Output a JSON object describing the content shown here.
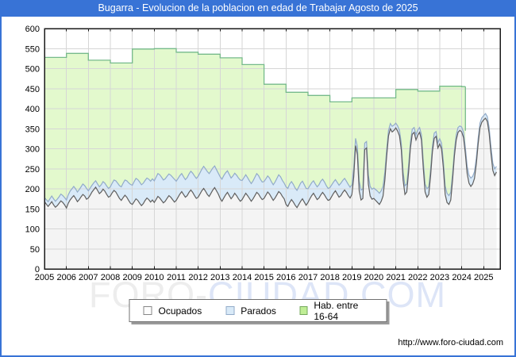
{
  "header": {
    "title": "Bugarra - Evolucion de la poblacion en edad de Trabajar Agosto de 2025"
  },
  "watermark": {
    "part1": "FORO-",
    "part2": "CIUDAD.COM"
  },
  "footer": {
    "url": "http://www.foro-ciudad.com"
  },
  "legend": {
    "items": [
      {
        "label": "Ocupados"
      },
      {
        "label": "Parados"
      },
      {
        "label": "Hab. entre 16-64"
      }
    ]
  },
  "chart_data": {
    "type": "area",
    "title": "Bugarra - Evolucion de la poblacion en edad de Trabajar Agosto de 2025",
    "x_unit": "month",
    "x_range": [
      2005.0,
      2025.75
    ],
    "y_range": [
      0,
      600
    ],
    "x_ticks": [
      2005,
      2006,
      2007,
      2008,
      2009,
      2010,
      2011,
      2012,
      2013,
      2014,
      2015,
      2016,
      2017,
      2018,
      2019,
      2020,
      2021,
      2022,
      2023,
      2024,
      2025
    ],
    "y_ticks": [
      0,
      50,
      100,
      150,
      200,
      250,
      300,
      350,
      400,
      450,
      500,
      550,
      600
    ],
    "grid": true,
    "legend_position": "bottom",
    "style": {
      "plot_bg": "#ffffff",
      "grid_color": "#d6d6d6",
      "border_color": "#1a1a1a",
      "ocupados_fill": "#f4f4f4",
      "ocupados_line": "#5f5f5f",
      "parados_fill": "#d9eaf8",
      "parados_line": "#92abc9",
      "hab_fill": "#e3f9cd",
      "hab_line": "#76ba8b",
      "accent_blue": "#3873d6"
    },
    "series": [
      {
        "name": "Ocupados",
        "role": "area",
        "monthly_by_year": {
          "2005": [
            168,
            162,
            156,
            162,
            168,
            160,
            154,
            158,
            164,
            170,
            166,
            160
          ],
          "2006": [
            152,
            164,
            172,
            178,
            183,
            176,
            168,
            173,
            180,
            186,
            182,
            174
          ],
          "2007": [
            177,
            184,
            192,
            198,
            204,
            196,
            188,
            192,
            199,
            194,
            186,
            179
          ],
          "2008": [
            182,
            190,
            196,
            192,
            184,
            176,
            171,
            178,
            184,
            179,
            171,
            164
          ],
          "2009": [
            161,
            168,
            175,
            171,
            164,
            158,
            163,
            171,
            177,
            173,
            167,
            172
          ],
          "2010": [
            166,
            173,
            181,
            177,
            171,
            165,
            169,
            176,
            183,
            179,
            173,
            167
          ],
          "2011": [
            171,
            179,
            187,
            193,
            186,
            179,
            183,
            191,
            197,
            191,
            183,
            176
          ],
          "2012": [
            179,
            187,
            195,
            201,
            194,
            186,
            181,
            189,
            197,
            203,
            195,
            187
          ],
          "2013": [
            176,
            169,
            177,
            185,
            191,
            183,
            175,
            181,
            189,
            183,
            175,
            169
          ],
          "2014": [
            173,
            181,
            189,
            183,
            176,
            169,
            175,
            183,
            191,
            187,
            179,
            173
          ],
          "2015": [
            176,
            184,
            192,
            187,
            179,
            171,
            177,
            185,
            193,
            189,
            181,
            175
          ],
          "2016": [
            161,
            156,
            166,
            173,
            167,
            159,
            153,
            161,
            169,
            175,
            167,
            159
          ],
          "2017": [
            166,
            175,
            183,
            189,
            181,
            173,
            177,
            185,
            191,
            185,
            177,
            171
          ],
          "2018": [
            173,
            181,
            189,
            195,
            187,
            179,
            183,
            191,
            197,
            191,
            183,
            177
          ],
          "2019": [
            186,
            230,
            308,
            285,
            195,
            172,
            176,
            298,
            302,
            212,
            182,
            174
          ],
          "2020": [
            176,
            171,
            166,
            161,
            169,
            182,
            222,
            282,
            332,
            350,
            342,
            346
          ],
          "2021": [
            352,
            344,
            332,
            298,
            222,
            186,
            192,
            242,
            302,
            336,
            341,
            322
          ],
          "2022": [
            334,
            341,
            322,
            252,
            192,
            179,
            186,
            232,
            292,
            326,
            331,
            302
          ],
          "2023": [
            312,
            300,
            252,
            186,
            166,
            161,
            172,
            222,
            282,
            322,
            341,
            346
          ],
          "2024": [
            342,
            328,
            288,
            238,
            214,
            206,
            212,
            226,
            262,
            312,
            352,
            366
          ],
          "2025": [
            372,
            376,
            368,
            338,
            288,
            246,
            233,
            242
          ]
        }
      },
      {
        "name": "Parados",
        "role": "area-stacked-on-ocupados",
        "monthly_by_year": {
          "2005": [
            10,
            11,
            12,
            13,
            14,
            15,
            15,
            16,
            16,
            17,
            17,
            18
          ],
          "2006": [
            20,
            21,
            22,
            22,
            23,
            24,
            24,
            25,
            25,
            26,
            26,
            27
          ],
          "2007": [
            18,
            18,
            17,
            17,
            16,
            16,
            17,
            18,
            19,
            20,
            21,
            22
          ],
          "2008": [
            23,
            24,
            26,
            28,
            30,
            32,
            34,
            36,
            38,
            41,
            44,
            47
          ],
          "2009": [
            48,
            50,
            51,
            52,
            53,
            52,
            51,
            50,
            50,
            51,
            52,
            53
          ],
          "2010": [
            54,
            56,
            57,
            58,
            58,
            57,
            56,
            55,
            54,
            55,
            56,
            57
          ],
          "2011": [
            48,
            47,
            46,
            45,
            44,
            44,
            45,
            46,
            47,
            48,
            49,
            50
          ],
          "2012": [
            52,
            53,
            54,
            55,
            56,
            57,
            57,
            56,
            55,
            54,
            53,
            52
          ],
          "2013": [
            54,
            55,
            56,
            55,
            54,
            53,
            52,
            51,
            50,
            51,
            52,
            53
          ],
          "2014": [
            48,
            47,
            46,
            45,
            44,
            44,
            45,
            46,
            47,
            46,
            45,
            44
          ],
          "2015": [
            42,
            41,
            40,
            40,
            39,
            39,
            40,
            41,
            42,
            41,
            40,
            39
          ],
          "2016": [
            44,
            45,
            46,
            45,
            44,
            43,
            43,
            44,
            45,
            44,
            43,
            42
          ],
          "2017": [
            34,
            33,
            32,
            31,
            31,
            32,
            33,
            34,
            33,
            32,
            31,
            30
          ],
          "2018": [
            30,
            29,
            28,
            28,
            29,
            30,
            31,
            30,
            29,
            28,
            28,
            27
          ],
          "2019": [
            24,
            22,
            18,
            20,
            24,
            25,
            24,
            16,
            16,
            22,
            24,
            25
          ],
          "2020": [
            26,
            27,
            28,
            28,
            26,
            24,
            20,
            16,
            14,
            13,
            14,
            13
          ],
          "2021": [
            12,
            13,
            14,
            16,
            20,
            22,
            20,
            16,
            14,
            13,
            12,
            13
          ],
          "2022": [
            13,
            12,
            13,
            17,
            20,
            21,
            19,
            16,
            14,
            13,
            12,
            13
          ],
          "2023": [
            13,
            14,
            17,
            21,
            23,
            22,
            19,
            16,
            14,
            13,
            12,
            11
          ],
          "2024": [
            12,
            13,
            15,
            18,
            20,
            21,
            19,
            17,
            15,
            13,
            12,
            11
          ],
          "2025": [
            11,
            12,
            12,
            14,
            16,
            18,
            17,
            14
          ]
        }
      },
      {
        "name": "Hab. entre 16-64",
        "role": "area",
        "yearly": {
          "2005": 528,
          "2006": 538,
          "2007": 521,
          "2008": 514,
          "2009": 549,
          "2010": 550,
          "2011": 541,
          "2012": 536,
          "2013": 527,
          "2014": 510,
          "2015": 461,
          "2016": 441,
          "2017": 433,
          "2018": 417,
          "2019": 427,
          "2020": 427,
          "2021": 448,
          "2022": 444,
          "2023": 456,
          "2024": 455
        },
        "ends_at": 2024.17
      }
    ]
  }
}
